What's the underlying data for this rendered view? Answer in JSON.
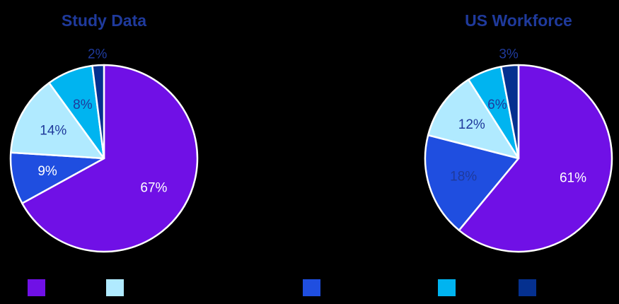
{
  "colors": {
    "background": "#000000",
    "title": "#1f3a9c",
    "slice_stroke": "#ffffff",
    "label_light": "#ffffff",
    "label_dark": "#1f3a9c"
  },
  "chart_data": [
    {
      "type": "pie",
      "title": "Study Data",
      "start_angle_deg": 0,
      "direction": "clockwise",
      "slices": [
        {
          "value": 67,
          "label": "67%",
          "color": "#7010e6",
          "label_color": "#ffffff"
        },
        {
          "value": 9,
          "label": "9%",
          "color": "#1f4ee0",
          "label_color": "#ffffff"
        },
        {
          "value": 14,
          "label": "14%",
          "color": "#b0eaff",
          "label_color": "#1f3a9c"
        },
        {
          "value": 8,
          "label": "8%",
          "color": "#00b4f0",
          "label_color": "#1f3a9c"
        },
        {
          "value": 2,
          "label": "2%",
          "color": "#05308f",
          "label_color": "#1f3a9c",
          "label_outside": true
        }
      ]
    },
    {
      "type": "pie",
      "title": "US Workforce",
      "start_angle_deg": 0,
      "direction": "clockwise",
      "slices": [
        {
          "value": 61,
          "label": "61%",
          "color": "#7010e6",
          "label_color": "#ffffff"
        },
        {
          "value": 18,
          "label": "18%",
          "color": "#1f4ee0",
          "label_color": "#1f3a9c"
        },
        {
          "value": 12,
          "label": "12%",
          "color": "#b0eaff",
          "label_color": "#1f3a9c"
        },
        {
          "value": 6,
          "label": "6%",
          "color": "#00b4f0",
          "label_color": "#1f3a9c"
        },
        {
          "value": 3,
          "label": "3%",
          "color": "#05308f",
          "label_color": "#1f3a9c",
          "label_outside": true
        }
      ]
    }
  ],
  "legend": {
    "placement": "bottom",
    "items": [
      {
        "color": "#7010e6",
        "label": ""
      },
      {
        "color": "#b0eaff",
        "label": ""
      },
      {
        "color": "#1f4ee0",
        "label": ""
      },
      {
        "color": "#00b4f0",
        "label": ""
      },
      {
        "color": "#05308f",
        "label": ""
      }
    ]
  }
}
